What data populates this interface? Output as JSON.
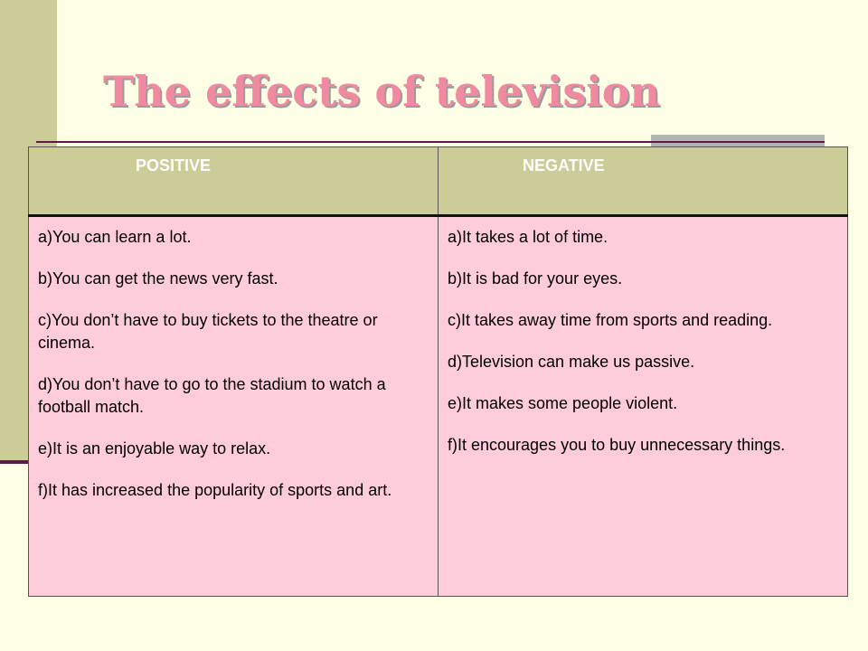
{
  "slide": {
    "title": "The effects of television"
  },
  "table": {
    "headers": {
      "positive": "POSITIVE",
      "negative": "NEGATIVE"
    },
    "positive": [
      "a)You can learn a lot.",
      "b)You can get the news very fast.",
      "c)You don’t have to buy tickets to the theatre or cinema.",
      "d)You don’t have to go to the stadium to watch a football match.",
      "e)It is an enjoyable way to relax.",
      "f)It has increased the popularity of sports and art."
    ],
    "negative": [
      "a)It takes a lot of time.",
      "b)It is bad for your eyes.",
      "c)It takes away time from sports and reading.",
      "d)Television can make us passive.",
      "e)It makes some people violent.",
      "f)It encourages you to buy unnecessary things."
    ]
  },
  "colors": {
    "background": "#ffffe5",
    "accent_olive": "#cccc99",
    "cell_pink": "#ffccdb",
    "title_pink": "#ef8aa1",
    "rule_maroon": "#5e1a45"
  }
}
